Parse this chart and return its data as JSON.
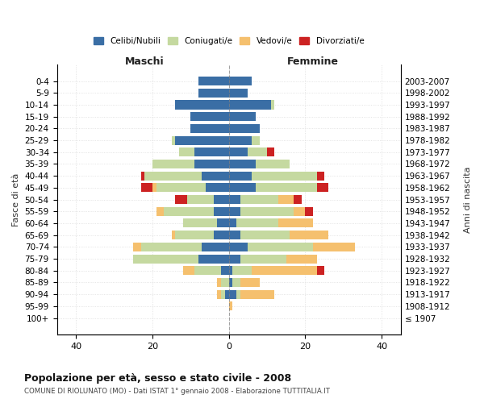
{
  "age_groups": [
    "0-4",
    "5-9",
    "10-14",
    "15-19",
    "20-24",
    "25-29",
    "30-34",
    "35-39",
    "40-44",
    "45-49",
    "50-54",
    "55-59",
    "60-64",
    "65-69",
    "70-74",
    "75-79",
    "80-84",
    "85-89",
    "90-94",
    "95-99",
    "100+"
  ],
  "birth_years": [
    "2003-2007",
    "1998-2002",
    "1993-1997",
    "1988-1992",
    "1983-1987",
    "1978-1982",
    "1973-1977",
    "1968-1972",
    "1963-1967",
    "1958-1962",
    "1953-1957",
    "1948-1952",
    "1943-1947",
    "1938-1942",
    "1933-1937",
    "1928-1932",
    "1923-1927",
    "1918-1922",
    "1913-1917",
    "1908-1912",
    "≤ 1907"
  ],
  "maschi": {
    "celibi": [
      8,
      8,
      14,
      10,
      10,
      14,
      9,
      9,
      7,
      6,
      4,
      4,
      3,
      4,
      7,
      8,
      2,
      0,
      1,
      0,
      0
    ],
    "coniugati": [
      0,
      0,
      0,
      0,
      0,
      1,
      4,
      11,
      15,
      13,
      7,
      13,
      9,
      10,
      16,
      17,
      7,
      2,
      1,
      0,
      0
    ],
    "vedovi": [
      0,
      0,
      0,
      0,
      0,
      0,
      0,
      0,
      0,
      1,
      0,
      2,
      0,
      1,
      2,
      0,
      3,
      1,
      1,
      0,
      0
    ],
    "divorziati": [
      0,
      0,
      0,
      0,
      0,
      0,
      0,
      0,
      1,
      3,
      3,
      0,
      0,
      0,
      0,
      0,
      0,
      0,
      0,
      0,
      0
    ]
  },
  "femmine": {
    "nubili": [
      6,
      5,
      11,
      7,
      8,
      6,
      5,
      7,
      6,
      7,
      3,
      3,
      2,
      3,
      5,
      3,
      1,
      1,
      2,
      0,
      0
    ],
    "coniugate": [
      0,
      0,
      1,
      0,
      0,
      2,
      5,
      9,
      17,
      16,
      10,
      14,
      11,
      13,
      17,
      12,
      5,
      2,
      1,
      0,
      0
    ],
    "vedove": [
      0,
      0,
      0,
      0,
      0,
      0,
      0,
      0,
      0,
      0,
      4,
      3,
      9,
      10,
      11,
      8,
      17,
      5,
      9,
      1,
      0
    ],
    "divorziate": [
      0,
      0,
      0,
      0,
      0,
      0,
      2,
      0,
      2,
      3,
      2,
      2,
      0,
      0,
      0,
      0,
      2,
      0,
      0,
      0,
      0
    ]
  },
  "colors": {
    "celibi_nubili": "#3a6ea5",
    "coniugati": "#c5d9a0",
    "vedovi": "#f5c06e",
    "divorziati": "#cc2222"
  },
  "xlim": 45,
  "title": "Popolazione per età, sesso e stato civile - 2008",
  "subtitle": "COMUNE DI RIOLUNATO (MO) - Dati ISTAT 1° gennaio 2008 - Elaborazione TUTTITALIA.IT",
  "ylabel_left": "Fasce di età",
  "ylabel_right": "Anni di nascita",
  "xlabel_maschi": "Maschi",
  "xlabel_femmine": "Femmine"
}
